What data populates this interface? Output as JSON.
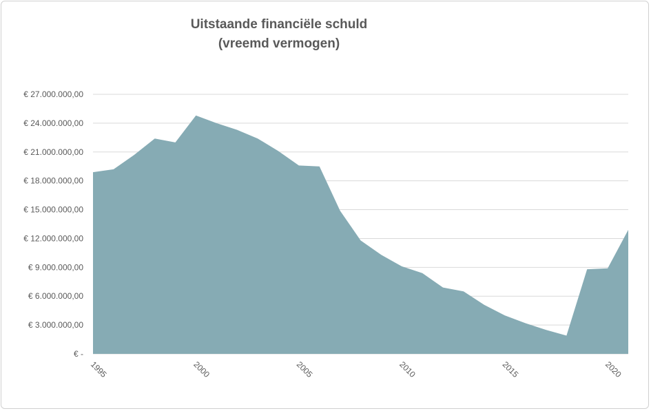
{
  "chart_data": {
    "type": "area",
    "title": "Uitstaande financiële schuld",
    "subtitle": "(vreemd vermogen)",
    "x": [
      1995,
      1996,
      1997,
      1998,
      1999,
      2000,
      2001,
      2002,
      2003,
      2004,
      2005,
      2006,
      2007,
      2008,
      2009,
      2010,
      2011,
      2012,
      2013,
      2014,
      2015,
      2016,
      2017,
      2018,
      2019,
      2020,
      2021
    ],
    "values": [
      18900000,
      19200000,
      20700000,
      22400000,
      22000000,
      24800000,
      24000000,
      23300000,
      22400000,
      21100000,
      19600000,
      19500000,
      14900000,
      11800000,
      10300000,
      9100000,
      8400000,
      6900000,
      6500000,
      5100000,
      4000000,
      3200000,
      2500000,
      1900000,
      8800000,
      8900000,
      12900000
    ],
    "ylim": [
      0,
      27000000
    ],
    "y_ticks": [
      0,
      3000000,
      6000000,
      9000000,
      12000000,
      15000000,
      18000000,
      21000000,
      24000000,
      27000000
    ],
    "y_tick_labels": [
      "€ -",
      "€ 3.000.000,00",
      "€ 6.000.000,00",
      "€ 9.000.000,00",
      "€ 12.000.000,00",
      "€ 15.000.000,00",
      "€ 18.000.000,00",
      "€ 21.000.000,00",
      "€ 24.000.000,00",
      "€ 27.000.000,00"
    ],
    "x_ticks": [
      1995,
      2000,
      2005,
      2010,
      2015,
      2020
    ],
    "x_tick_labels": [
      "1995",
      "2000",
      "2005",
      "2010",
      "2015",
      "2020"
    ],
    "grid": true,
    "legend": "none",
    "colors": {
      "fill": "#86abb4",
      "grid": "#d9d9d9",
      "text": "#595959"
    }
  }
}
